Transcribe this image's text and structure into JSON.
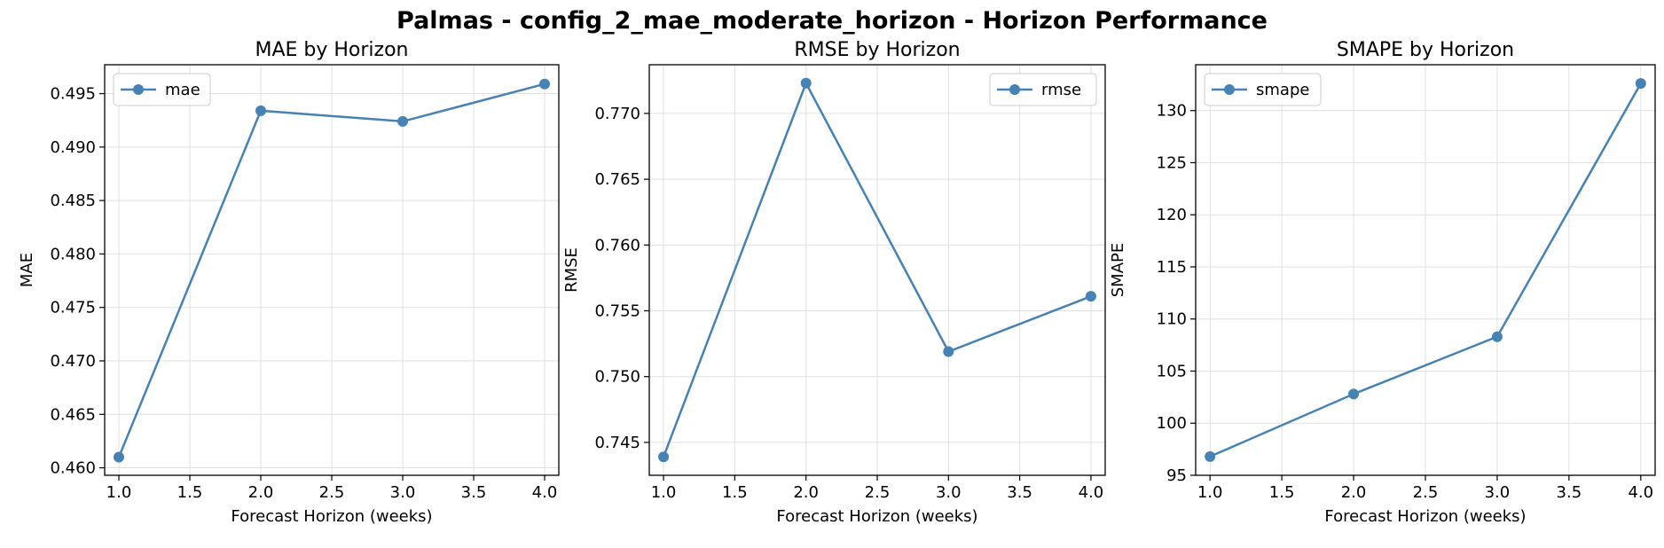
{
  "figure": {
    "title": "Palmas - config_2_mae_moderate_horizon - Horizon Performance"
  },
  "colors": {
    "series": "#4682b4",
    "grid": "#e0e0e0",
    "axis": "#000000"
  },
  "chart_data": [
    {
      "type": "line",
      "title": "MAE by Horizon",
      "xlabel": "Forecast Horizon (weeks)",
      "ylabel": "MAE",
      "x": [
        1.0,
        2.0,
        3.0,
        4.0
      ],
      "series": [
        {
          "name": "mae",
          "values": [
            0.461,
            0.4934,
            0.4924,
            0.4959
          ]
        }
      ],
      "xlim": [
        0.9,
        4.1
      ],
      "ylim": [
        0.4593,
        0.4977
      ],
      "xticks": [
        "1.0",
        "1.5",
        "2.0",
        "2.5",
        "3.0",
        "3.5",
        "4.0"
      ],
      "yticks": [
        "0.460",
        "0.465",
        "0.470",
        "0.475",
        "0.480",
        "0.485",
        "0.490",
        "0.495"
      ],
      "grid": true,
      "legend": "upper-left",
      "marker": "circle"
    },
    {
      "type": "line",
      "title": "RMSE by Horizon",
      "xlabel": "Forecast Horizon (weeks)",
      "ylabel": "RMSE",
      "x": [
        1.0,
        2.0,
        3.0,
        4.0
      ],
      "series": [
        {
          "name": "rmse",
          "values": [
            0.7439,
            0.7723,
            0.7519,
            0.7561
          ]
        }
      ],
      "xlim": [
        0.9,
        4.1
      ],
      "ylim": [
        0.7425,
        0.7737
      ],
      "xticks": [
        "1.0",
        "1.5",
        "2.0",
        "2.5",
        "3.0",
        "3.5",
        "4.0"
      ],
      "yticks": [
        "0.745",
        "0.750",
        "0.755",
        "0.760",
        "0.765",
        "0.770"
      ],
      "grid": true,
      "legend": "upper-right",
      "marker": "circle"
    },
    {
      "type": "line",
      "title": "SMAPE by Horizon",
      "xlabel": "Forecast Horizon (weeks)",
      "ylabel": "SMAPE",
      "x": [
        1.0,
        2.0,
        3.0,
        4.0
      ],
      "series": [
        {
          "name": "smape",
          "values": [
            96.8,
            102.8,
            108.3,
            132.6
          ]
        }
      ],
      "xlim": [
        0.9,
        4.1
      ],
      "ylim": [
        95.0,
        134.4
      ],
      "xticks": [
        "1.0",
        "1.5",
        "2.0",
        "2.5",
        "3.0",
        "3.5",
        "4.0"
      ],
      "yticks": [
        "95",
        "100",
        "105",
        "110",
        "115",
        "120",
        "125",
        "130"
      ],
      "grid": true,
      "legend": "upper-left",
      "marker": "circle"
    }
  ]
}
